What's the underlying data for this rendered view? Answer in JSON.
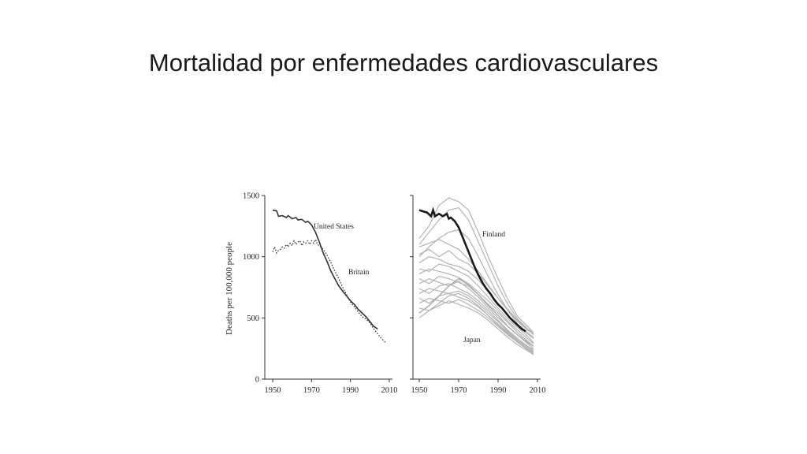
{
  "slide": {
    "title": "Mortalidad por enfermedades cardiovasculares"
  },
  "chart_data": [
    {
      "type": "line",
      "ylabel": "Deaths per 100,000 people",
      "xlim": [
        1950,
        2010
      ],
      "ylim": [
        0,
        1500
      ],
      "xticks": [
        "1950",
        "1970",
        "1990",
        "2010"
      ],
      "yticks": [
        "0",
        "500",
        "1000",
        "1500"
      ],
      "grid": false,
      "series": [
        {
          "name": "United States",
          "style": "solid",
          "color": "#333333",
          "x": [
            1950,
            1952,
            1953,
            1955,
            1957,
            1958,
            1960,
            1962,
            1963,
            1965,
            1967,
            1968,
            1970,
            1972,
            1974,
            1976,
            1978,
            1980,
            1982,
            1984,
            1986,
            1988,
            1990,
            1992,
            1994,
            1996,
            1998,
            2000,
            2002,
            2004
          ],
          "y": [
            1380,
            1375,
            1330,
            1335,
            1320,
            1335,
            1310,
            1320,
            1300,
            1305,
            1280,
            1290,
            1260,
            1200,
            1120,
            1030,
            960,
            880,
            820,
            760,
            720,
            680,
            640,
            610,
            570,
            540,
            510,
            470,
            430,
            410
          ]
        },
        {
          "name": "Britain",
          "style": "dotted",
          "color": "#333333",
          "x": [
            1950,
            1951,
            1952,
            1953,
            1954,
            1955,
            1956,
            1957,
            1958,
            1959,
            1960,
            1961,
            1962,
            1963,
            1964,
            1965,
            1966,
            1967,
            1968,
            1969,
            1970,
            1971,
            1972,
            1973,
            1974,
            1976,
            1978,
            1980,
            1982,
            1984,
            1986,
            1988,
            1990,
            1992,
            1994,
            1996,
            1998,
            2000,
            2002,
            2004,
            2006,
            2008
          ],
          "y": [
            1040,
            1080,
            1030,
            1050,
            1060,
            1080,
            1070,
            1100,
            1080,
            1110,
            1090,
            1130,
            1100,
            1120,
            1130,
            1090,
            1120,
            1110,
            1130,
            1100,
            1130,
            1110,
            1140,
            1100,
            1090,
            1060,
            1010,
            950,
            880,
            820,
            750,
            690,
            630,
            590,
            550,
            510,
            490,
            460,
            410,
            370,
            330,
            300
          ]
        },
        {
          "name": "Finland",
          "style": "solid-bold",
          "color": "#1a1a1a",
          "x": [
            1950,
            1952,
            1954,
            1956,
            1957,
            1958,
            1960,
            1962,
            1964,
            1965,
            1966,
            1968,
            1970,
            1972,
            1974,
            1976,
            1978,
            1980,
            1982,
            1984,
            1986,
            1988,
            1990,
            1992,
            1994,
            1996,
            1998,
            2000,
            2002,
            2004
          ],
          "y": [
            1380,
            1370,
            1360,
            1330,
            1380,
            1330,
            1350,
            1330,
            1350,
            1310,
            1320,
            1290,
            1240,
            1160,
            1080,
            1000,
            920,
            850,
            790,
            740,
            700,
            650,
            610,
            580,
            540,
            500,
            470,
            440,
            410,
            390
          ]
        },
        {
          "name": "Japan",
          "style": "solid",
          "color": "#aaaaaa",
          "x": [
            1950,
            1955,
            1960,
            1965,
            1970,
            1975,
            1980,
            1985,
            1990,
            1995,
            2000,
            2005,
            2008
          ],
          "y": [
            540,
            600,
            680,
            760,
            820,
            770,
            690,
            600,
            520,
            430,
            360,
            300,
            270
          ]
        }
      ],
      "background_series": [
        {
          "x": [
            1950,
            1955,
            1960,
            1965,
            1970,
            1975,
            1980,
            1985,
            1990,
            1995,
            2000,
            2005,
            2008
          ],
          "y": [
            1080,
            1110,
            1140,
            1100,
            1060,
            980,
            880,
            770,
            660,
            560,
            470,
            400,
            370
          ]
        },
        {
          "x": [
            1950,
            1955,
            1960,
            1965,
            1970,
            1975,
            1980,
            1985,
            1990,
            1995,
            2000,
            2005,
            2008
          ],
          "y": [
            1020,
            1060,
            1000,
            1050,
            980,
            940,
            860,
            760,
            660,
            570,
            480,
            410,
            380
          ]
        },
        {
          "x": [
            1950,
            1955,
            1960,
            1965,
            1970,
            1975,
            1980,
            1985,
            1990,
            1995,
            2000,
            2005,
            2008
          ],
          "y": [
            950,
            1000,
            980,
            940,
            920,
            880,
            810,
            720,
            620,
            520,
            440,
            370,
            330
          ]
        },
        {
          "x": [
            1950,
            1955,
            1960,
            1965,
            1970,
            1975,
            1980,
            1985,
            1990,
            1995,
            2000,
            2005,
            2008
          ],
          "y": [
            900,
            880,
            940,
            920,
            880,
            840,
            760,
            670,
            580,
            490,
            420,
            350,
            300
          ]
        },
        {
          "x": [
            1950,
            1955,
            1960,
            1965,
            1970,
            1975,
            1980,
            1985,
            1990,
            1995,
            2000,
            2005,
            2008
          ],
          "y": [
            860,
            900,
            880,
            860,
            830,
            780,
            710,
            640,
            560,
            470,
            400,
            330,
            290
          ]
        },
        {
          "x": [
            1950,
            1955,
            1960,
            1965,
            1970,
            1975,
            1980,
            1985,
            1990,
            1995,
            2000,
            2005,
            2008
          ],
          "y": [
            820,
            780,
            840,
            820,
            790,
            760,
            690,
            610,
            540,
            460,
            380,
            310,
            270
          ]
        },
        {
          "x": [
            1950,
            1955,
            1960,
            1965,
            1970,
            1975,
            1980,
            1985,
            1990,
            1995,
            2000,
            2005,
            2008
          ],
          "y": [
            780,
            820,
            790,
            760,
            800,
            740,
            670,
            580,
            500,
            430,
            360,
            290,
            250
          ]
        },
        {
          "x": [
            1950,
            1955,
            1960,
            1965,
            1970,
            1975,
            1980,
            1985,
            1990,
            1995,
            2000,
            2005,
            2008
          ],
          "y": [
            740,
            700,
            760,
            780,
            740,
            700,
            640,
            560,
            480,
            400,
            330,
            270,
            240
          ]
        },
        {
          "x": [
            1950,
            1955,
            1960,
            1965,
            1970,
            1975,
            1980,
            1985,
            1990,
            1995,
            2000,
            2005,
            2008
          ],
          "y": [
            700,
            740,
            720,
            700,
            720,
            680,
            620,
            540,
            470,
            390,
            320,
            260,
            230
          ]
        },
        {
          "x": [
            1950,
            1955,
            1960,
            1965,
            1970,
            1975,
            1980,
            1985,
            1990,
            1995,
            2000,
            2005,
            2008
          ],
          "y": [
            660,
            620,
            680,
            700,
            670,
            640,
            590,
            520,
            450,
            380,
            310,
            250,
            220
          ]
        },
        {
          "x": [
            1950,
            1955,
            1960,
            1965,
            1970,
            1975,
            1980,
            1985,
            1990,
            1995,
            2000,
            2005,
            2008
          ],
          "y": [
            620,
            660,
            640,
            620,
            650,
            610,
            560,
            500,
            430,
            360,
            300,
            240,
            210
          ]
        },
        {
          "x": [
            1950,
            1955,
            1960,
            1965,
            1970,
            1975,
            1980,
            1985,
            1990,
            1995,
            2000,
            2005,
            2008
          ],
          "y": [
            580,
            560,
            600,
            640,
            610,
            580,
            540,
            480,
            410,
            340,
            280,
            230,
            200
          ]
        },
        {
          "x": [
            1950,
            1955,
            1960,
            1965,
            1970,
            1975,
            1980,
            1985,
            1990,
            1995,
            2000,
            2005,
            2008
          ],
          "y": [
            500,
            560,
            620,
            680,
            700,
            660,
            600,
            520,
            440,
            370,
            300,
            240,
            210
          ]
        },
        {
          "x": [
            1950,
            1955,
            1960,
            1965,
            1970,
            1975,
            1980,
            1985,
            1990,
            1995,
            2000,
            2005,
            2008
          ],
          "y": [
            1150,
            1250,
            1420,
            1480,
            1450,
            1380,
            1200,
            1000,
            820,
            650,
            510,
            430,
            380
          ]
        },
        {
          "x": [
            1950,
            1955,
            1960,
            1965,
            1970,
            1975,
            1980,
            1985,
            1990,
            1995,
            2000,
            2005,
            2008
          ],
          "y": [
            1100,
            1200,
            1300,
            1380,
            1400,
            1300,
            1120,
            940,
            760,
            610,
            490,
            410,
            360
          ]
        },
        {
          "x": [
            1950,
            1955,
            1960,
            1965,
            1970,
            1975,
            1980,
            1985,
            1990,
            1995,
            2000,
            2005,
            2008
          ],
          "y": [
            1000,
            1080,
            1150,
            1200,
            1220,
            1150,
            1000,
            840,
            690,
            560,
            450,
            380,
            340
          ]
        }
      ],
      "annotations": [
        "United States",
        "Britain",
        "Finland",
        "Japan"
      ]
    }
  ]
}
